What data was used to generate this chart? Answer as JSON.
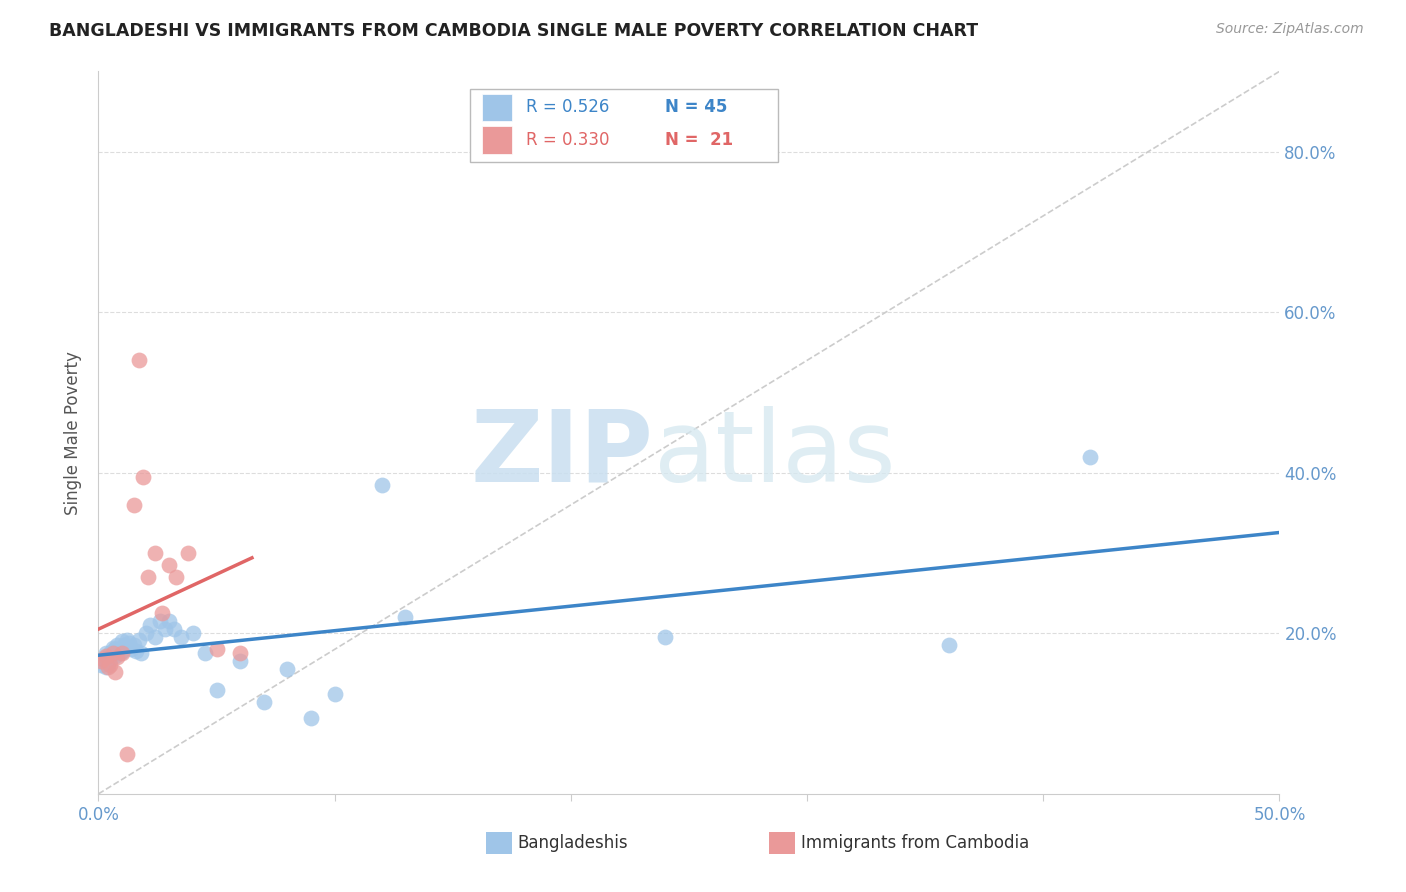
{
  "title": "BANGLADESHI VS IMMIGRANTS FROM CAMBODIA SINGLE MALE POVERTY CORRELATION CHART",
  "source": "Source: ZipAtlas.com",
  "ylabel": "Single Male Poverty",
  "xlim": [
    0.0,
    0.5
  ],
  "ylim": [
    0.0,
    0.9
  ],
  "xtick_vals": [
    0.0,
    0.1,
    0.2,
    0.3,
    0.4,
    0.5
  ],
  "xtick_labels": [
    "0.0%",
    "",
    "",
    "",
    "",
    "50.0%"
  ],
  "right_ytick_labels": [
    "20.0%",
    "40.0%",
    "60.0%",
    "80.0%"
  ],
  "right_yticks": [
    0.2,
    0.4,
    0.6,
    0.8
  ],
  "blue_color": "#9fc5e8",
  "pink_color": "#ea9999",
  "blue_line_color": "#3d85c8",
  "pink_line_color": "#e06666",
  "diagonal_color": "#cccccc",
  "tick_label_color": "#6699cc",
  "watermark_zip_color": "#c9dff0",
  "watermark_atlas_color": "#d5e8f0",
  "bangladeshi_x": [
    0.001,
    0.002,
    0.003,
    0.003,
    0.004,
    0.004,
    0.005,
    0.005,
    0.006,
    0.006,
    0.007,
    0.007,
    0.008,
    0.009,
    0.01,
    0.01,
    0.011,
    0.012,
    0.013,
    0.014,
    0.015,
    0.016,
    0.017,
    0.018,
    0.02,
    0.022,
    0.024,
    0.026,
    0.028,
    0.03,
    0.032,
    0.035,
    0.04,
    0.045,
    0.05,
    0.06,
    0.07,
    0.08,
    0.09,
    0.1,
    0.12,
    0.13,
    0.24,
    0.36,
    0.42
  ],
  "bangladeshi_y": [
    0.16,
    0.165,
    0.175,
    0.158,
    0.17,
    0.162,
    0.175,
    0.168,
    0.178,
    0.182,
    0.172,
    0.18,
    0.185,
    0.175,
    0.19,
    0.178,
    0.185,
    0.192,
    0.188,
    0.18,
    0.185,
    0.178,
    0.192,
    0.175,
    0.2,
    0.21,
    0.195,
    0.215,
    0.205,
    0.215,
    0.205,
    0.195,
    0.2,
    0.175,
    0.13,
    0.165,
    0.115,
    0.155,
    0.095,
    0.125,
    0.385,
    0.22,
    0.195,
    0.185,
    0.42
  ],
  "cambodia_x": [
    0.001,
    0.002,
    0.003,
    0.004,
    0.005,
    0.006,
    0.007,
    0.008,
    0.01,
    0.012,
    0.015,
    0.017,
    0.019,
    0.021,
    0.024,
    0.027,
    0.03,
    0.033,
    0.038,
    0.05,
    0.06
  ],
  "cambodia_y": [
    0.165,
    0.168,
    0.172,
    0.158,
    0.16,
    0.175,
    0.152,
    0.17,
    0.175,
    0.05,
    0.36,
    0.54,
    0.395,
    0.27,
    0.3,
    0.225,
    0.285,
    0.27,
    0.3,
    0.18,
    0.175
  ]
}
